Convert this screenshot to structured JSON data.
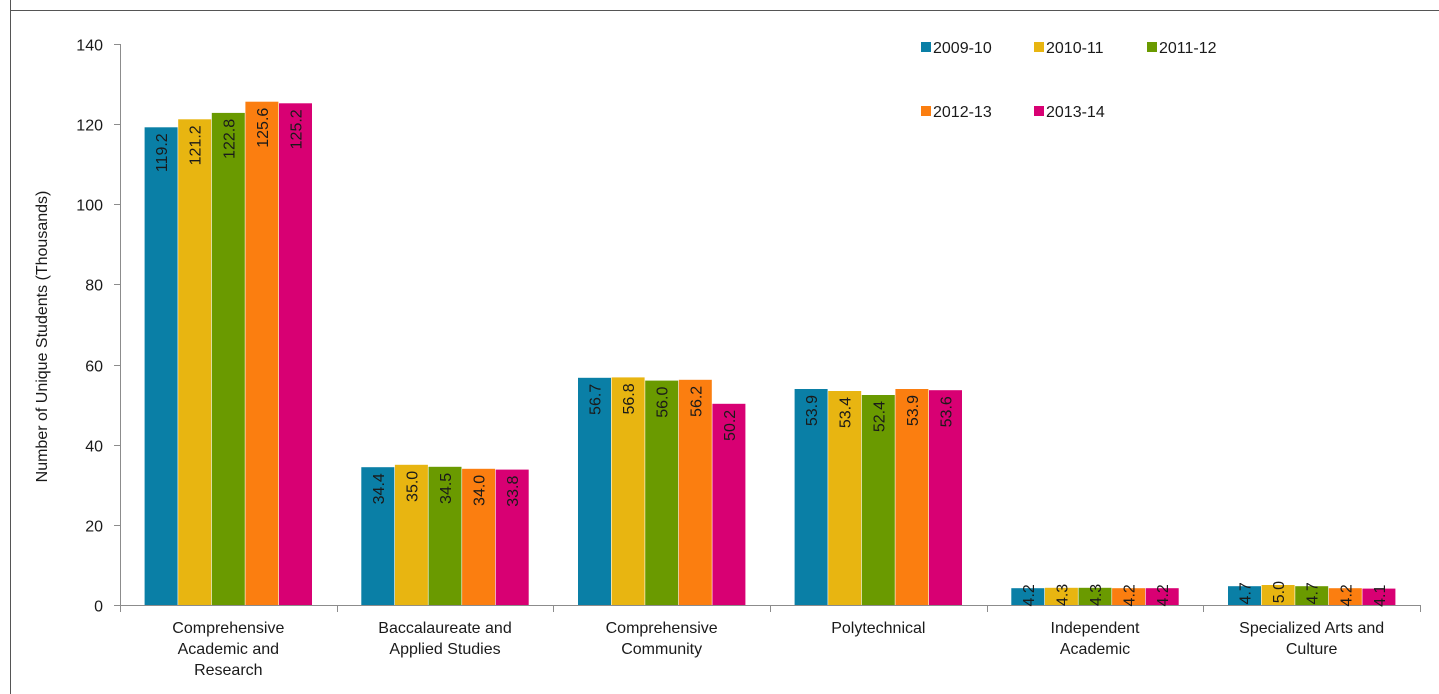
{
  "chart_data": {
    "type": "bar",
    "title": "",
    "xlabel": "",
    "ylabel": "Number of Unique Students  (Thousands)",
    "ylim": [
      0,
      140
    ],
    "yticks": [
      0,
      20,
      40,
      60,
      80,
      100,
      120,
      140
    ],
    "grid": false,
    "legend_position": "top-right",
    "categories": [
      [
        "Comprehensive",
        "Academic and",
        "Research"
      ],
      [
        "Baccalaureate and",
        "Applied Studies"
      ],
      [
        "Comprehensive",
        "Community"
      ],
      [
        "Polytechnical"
      ],
      [
        "Independent",
        "Academic"
      ],
      [
        "Specialized Arts and",
        "Culture"
      ]
    ],
    "series": [
      {
        "name": "2009-10",
        "color": "#0a7fa6",
        "label_color": "#ffffff",
        "values": [
          119.2,
          34.4,
          56.7,
          53.9,
          4.2,
          4.7
        ],
        "labels": [
          "119.2",
          "34.4",
          "56.7",
          "53.9",
          "4.2",
          "4.7"
        ]
      },
      {
        "name": "2010-11",
        "color": "#e8b511",
        "label_color": "#333333",
        "values": [
          121.2,
          35.0,
          56.8,
          53.4,
          4.3,
          5.0
        ],
        "labels": [
          "121.2",
          "35.0",
          "56.8",
          "53.4",
          "4.3",
          "5.0"
        ]
      },
      {
        "name": "2011-12",
        "color": "#6a9a00",
        "label_color": "#ffffff",
        "values": [
          122.8,
          34.5,
          56.0,
          52.4,
          4.3,
          4.7
        ],
        "labels": [
          "122.8",
          "34.5",
          "56.0",
          "52.4",
          "4.3",
          "4.7"
        ]
      },
      {
        "name": "2012-13",
        "color": "#fb7e10",
        "label_color": "#ffffff",
        "values": [
          125.6,
          34.0,
          56.2,
          53.9,
          4.2,
          4.2
        ],
        "labels": [
          "125.6",
          "34.0",
          "56.2",
          "53.9",
          "4.2",
          "4.2"
        ]
      },
      {
        "name": "2013-14",
        "color": "#d80073",
        "label_color": "#ffffff",
        "values": [
          125.2,
          33.8,
          50.2,
          53.6,
          4.2,
          4.1
        ],
        "labels": [
          "125.2",
          "33.8",
          "50.2",
          "53.6",
          "4.2",
          "4.1"
        ]
      }
    ]
  }
}
